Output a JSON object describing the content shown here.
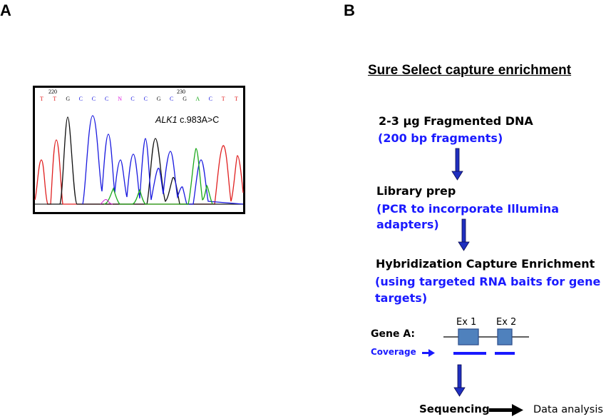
{
  "panel_a": {
    "label": "A",
    "positions": [
      "220",
      "230"
    ],
    "bases": [
      "T",
      "T",
      "G",
      "C",
      "C",
      "C",
      "N",
      "C",
      "C",
      "G",
      "C",
      "G",
      "A",
      "C",
      "T",
      "T"
    ],
    "base_colors": {
      "T": "#e02020",
      "G": "#111111",
      "C": "#1a1adf",
      "A": "#18a818",
      "N": "#e020e0"
    },
    "annotation_gene": "ALK1",
    "annotation_variant": " c.983A>C"
  },
  "panel_b": {
    "label": "B",
    "title": "Sure Select capture enrichment",
    "step1": {
      "title": "2-3 µg Fragmented DNA",
      "detail": "(200 bp fragments)"
    },
    "step2": {
      "title": "Library prep",
      "detail_line1": "(PCR to incorporate Illumina",
      "detail_line2": "adapters)"
    },
    "step3": {
      "title": "Hybridization Capture Enrichment",
      "detail_line1": "(using targeted RNA baits for gene",
      "detail_line2": "targets)"
    },
    "gene": {
      "label": "Gene A:",
      "exon1": "Ex 1",
      "exon2": "Ex 2",
      "coverage_label": "Coverage"
    },
    "final": {
      "sequencing": "Sequencing",
      "analysis": "Data analysis"
    },
    "colors": {
      "blue_text": "#1a1aff",
      "arrow_blue": "#1f2fbf",
      "exon_fill": "#4f81bd"
    }
  }
}
